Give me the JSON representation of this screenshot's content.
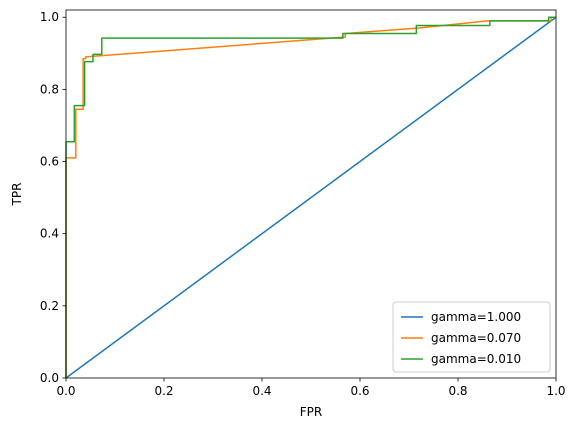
{
  "chart_data": {
    "type": "line",
    "title": "",
    "xlabel": "FPR",
    "ylabel": "TPR",
    "xlim": [
      0,
      1
    ],
    "ylim": [
      0,
      1.02
    ],
    "x_ticks": [
      "0.0",
      "0.2",
      "0.4",
      "0.6",
      "0.8",
      "1.0"
    ],
    "y_ticks": [
      "0.0",
      "0.2",
      "0.4",
      "0.6",
      "0.8",
      "1.0"
    ],
    "grid": false,
    "legend_position": "bottom-right",
    "series": [
      {
        "name": "gamma=1.000",
        "color": "#1f77b4",
        "points": [
          [
            0,
            0
          ],
          [
            1,
            1
          ]
        ]
      },
      {
        "name": "gamma=0.070",
        "color": "#ff7f0e",
        "points": [
          [
            0,
            0
          ],
          [
            0,
            0.61
          ],
          [
            0.02,
            0.61
          ],
          [
            0.02,
            0.745
          ],
          [
            0.035,
            0.745
          ],
          [
            0.035,
            0.885
          ],
          [
            0.04,
            0.885
          ],
          [
            0.04,
            0.89
          ],
          [
            0.57,
            0.945
          ],
          [
            0.57,
            0.955
          ],
          [
            0.72,
            0.97
          ],
          [
            0.86,
            0.99
          ],
          [
            0.99,
            0.99
          ],
          [
            0.99,
            1.0
          ],
          [
            1.0,
            1.0
          ]
        ]
      },
      {
        "name": "gamma=0.010",
        "color": "#2ca02c",
        "points": [
          [
            0,
            0
          ],
          [
            0,
            0.655
          ],
          [
            0.017,
            0.655
          ],
          [
            0.017,
            0.755
          ],
          [
            0.038,
            0.755
          ],
          [
            0.038,
            0.877
          ],
          [
            0.055,
            0.877
          ],
          [
            0.055,
            0.897
          ],
          [
            0.073,
            0.897
          ],
          [
            0.073,
            0.942
          ],
          [
            0.565,
            0.942
          ],
          [
            0.565,
            0.955
          ],
          [
            0.715,
            0.955
          ],
          [
            0.715,
            0.977
          ],
          [
            0.865,
            0.977
          ],
          [
            0.865,
            0.99
          ],
          [
            0.985,
            0.99
          ],
          [
            0.985,
            1.0
          ],
          [
            1.0,
            1.0
          ]
        ]
      }
    ]
  }
}
